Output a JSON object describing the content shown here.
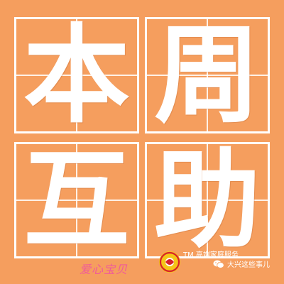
{
  "background_color": "#F59E5E",
  "glyphs": {
    "top_left": "本",
    "top_right": "周",
    "bottom_left": "互",
    "bottom_right": "助"
  },
  "footer": {
    "brand_text": "爱心宝贝",
    "tm_text": "TM 高端家庭服务",
    "wechat_account": "大兴这些事儿"
  },
  "icons": {
    "logo": "sun-swirl-logo",
    "wechat": "wechat-icon"
  }
}
